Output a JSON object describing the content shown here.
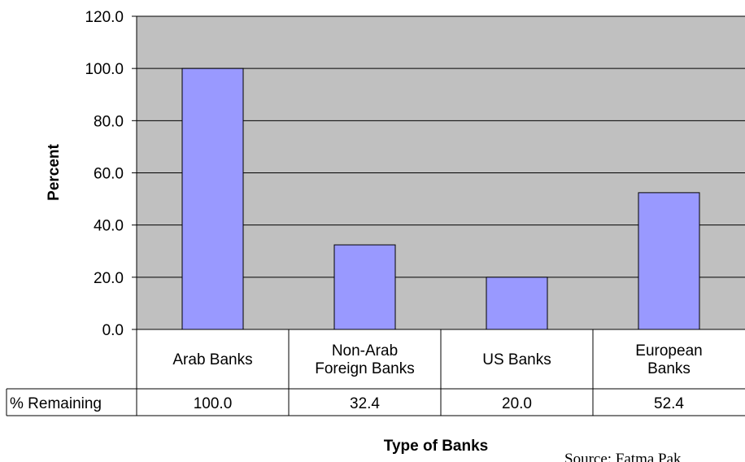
{
  "chart_data": {
    "type": "bar",
    "categories": [
      [
        "Arab Banks"
      ],
      [
        "Non-Arab",
        "Foreign Banks"
      ],
      [
        "US Banks"
      ],
      [
        "European",
        "Banks"
      ]
    ],
    "series": [
      {
        "name": "% Remaining",
        "values": [
          100.0,
          32.4,
          20.0,
          52.4
        ]
      }
    ],
    "data_table_values": [
      "100.0",
      "32.4",
      "20.0",
      "52.4"
    ],
    "y_ticks": [
      "0.0",
      "20.0",
      "40.0",
      "60.0",
      "80.0",
      "100.0",
      "120.0"
    ],
    "ylim": [
      0,
      120
    ],
    "ylabel": "Percent",
    "xlabel": "Type of Banks",
    "grid": true,
    "colors": {
      "bar": "#9999FF",
      "plot_bg": "#C0C0C0",
      "border": "#000000"
    },
    "source_text": "Source: Fatma Pak"
  }
}
